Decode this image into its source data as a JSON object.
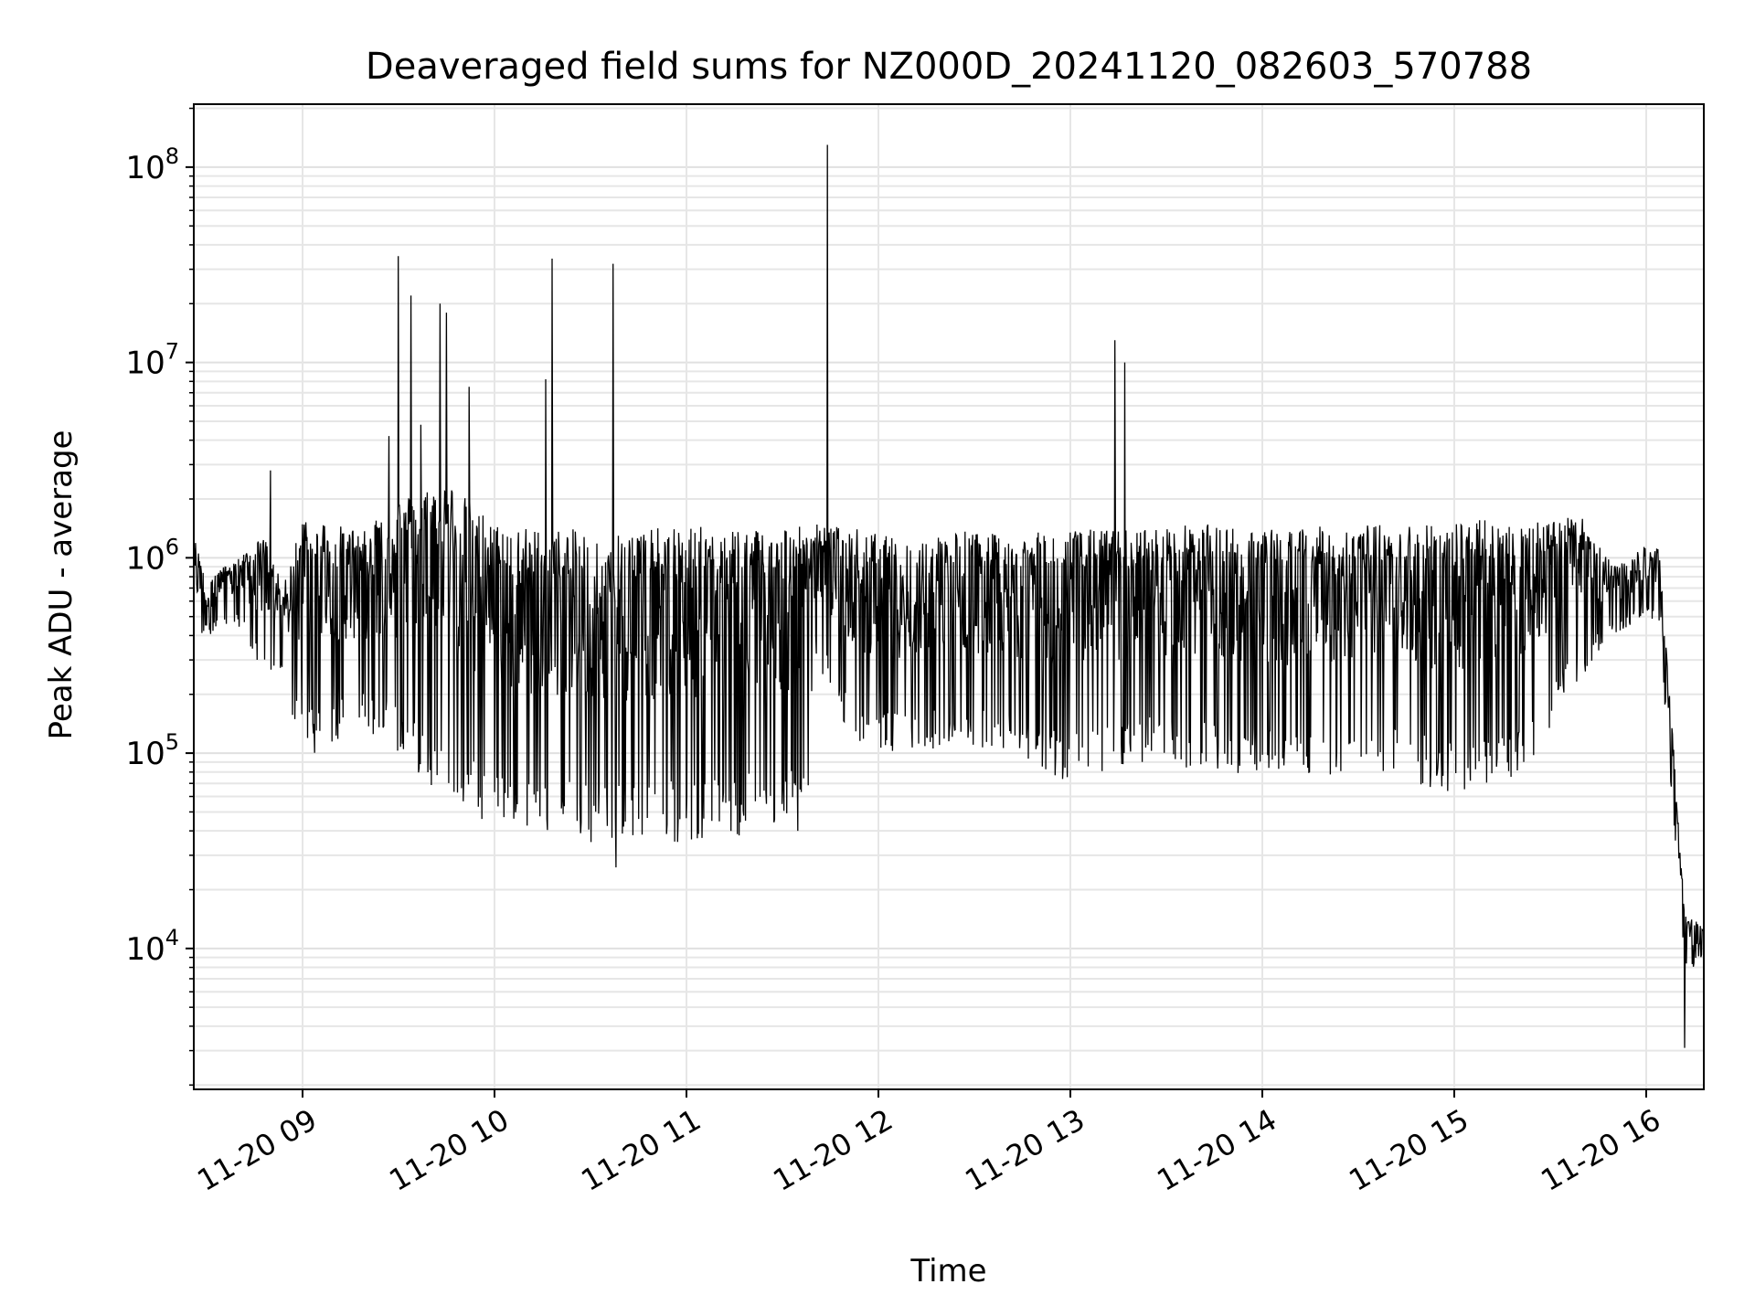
{
  "chart_data": {
    "type": "line",
    "title": "Deaveraged field sums for NZ000D_20241120_082603_570788",
    "xlabel": "Time",
    "ylabel": "Peak ADU - average",
    "yscale": "log",
    "grid": true,
    "grid_minor": true,
    "xlim": [
      "2024-11-20 08:26",
      "2024-11-20 16:18"
    ],
    "ylim": [
      1900,
      210000000
    ],
    "x_ticks": [
      {
        "value": "2024-11-20 09:00",
        "label": "11-20 09"
      },
      {
        "value": "2024-11-20 10:00",
        "label": "11-20 10"
      },
      {
        "value": "2024-11-20 11:00",
        "label": "11-20 11"
      },
      {
        "value": "2024-11-20 12:00",
        "label": "11-20 12"
      },
      {
        "value": "2024-11-20 13:00",
        "label": "11-20 13"
      },
      {
        "value": "2024-11-20 14:00",
        "label": "11-20 14"
      },
      {
        "value": "2024-11-20 15:00",
        "label": "11-20 15"
      },
      {
        "value": "2024-11-20 16:00",
        "label": "11-20 16"
      }
    ],
    "y_ticks": [
      {
        "value": 10000,
        "base": "10",
        "exp": "4"
      },
      {
        "value": 100000,
        "base": "10",
        "exp": "5"
      },
      {
        "value": 1000000,
        "base": "10",
        "exp": "6"
      },
      {
        "value": 10000000,
        "base": "10",
        "exp": "7"
      },
      {
        "value": 100000000,
        "base": "10",
        "exp": "8"
      }
    ],
    "series": [
      {
        "color": "#000000",
        "envelope": [
          {
            "t": "08:26",
            "low": 350000,
            "high": 1300000
          },
          {
            "t": "08:30",
            "low": 400000,
            "high": 800000
          },
          {
            "t": "08:40",
            "low": 450000,
            "high": 1000000
          },
          {
            "t": "08:48",
            "low": 220000,
            "high": 1300000
          },
          {
            "t": "08:54",
            "low": 250000,
            "high": 700000
          },
          {
            "t": "09:00",
            "low": 90000,
            "high": 1700000
          },
          {
            "t": "09:15",
            "low": 130000,
            "high": 1400000
          },
          {
            "t": "09:30",
            "low": 100000,
            "high": 2000000
          },
          {
            "t": "09:45",
            "low": 55000,
            "high": 2500000
          },
          {
            "t": "10:00",
            "low": 40000,
            "high": 1500000
          },
          {
            "t": "10:15",
            "low": 40000,
            "high": 1400000
          },
          {
            "t": "10:30",
            "low": 35000,
            "high": 1400000
          },
          {
            "t": "10:45",
            "low": 35000,
            "high": 1400000
          },
          {
            "t": "11:00",
            "low": 35000,
            "high": 1450000
          },
          {
            "t": "11:20",
            "low": 38000,
            "high": 1450000
          },
          {
            "t": "11:38",
            "low": 40000,
            "high": 1500000
          },
          {
            "t": "11:40",
            "low": 300000,
            "high": 1500000
          },
          {
            "t": "11:55",
            "low": 90000,
            "high": 1400000
          },
          {
            "t": "12:10",
            "low": 100000,
            "high": 1200000
          },
          {
            "t": "12:25",
            "low": 100000,
            "high": 1400000
          },
          {
            "t": "12:40",
            "low": 100000,
            "high": 1300000
          },
          {
            "t": "13:00",
            "low": 70000,
            "high": 1400000
          },
          {
            "t": "13:20",
            "low": 90000,
            "high": 1400000
          },
          {
            "t": "13:40",
            "low": 80000,
            "high": 1500000
          },
          {
            "t": "14:00",
            "low": 75000,
            "high": 1400000
          },
          {
            "t": "14:20",
            "low": 75000,
            "high": 1450000
          },
          {
            "t": "14:40",
            "low": 75000,
            "high": 1500000
          },
          {
            "t": "15:00",
            "low": 60000,
            "high": 1550000
          },
          {
            "t": "15:20",
            "low": 70000,
            "high": 1600000
          },
          {
            "t": "15:40",
            "low": 250000,
            "high": 1600000
          },
          {
            "t": "15:50",
            "low": 400000,
            "high": 900000
          },
          {
            "t": "16:00",
            "low": 500000,
            "high": 1200000
          },
          {
            "t": "16:04",
            "low": 400000,
            "high": 1100000
          },
          {
            "t": "16:08",
            "low": 60000,
            "high": 150000
          },
          {
            "t": "16:12",
            "low": 7500,
            "high": 15000
          },
          {
            "t": "16:15",
            "low": 8000,
            "high": 14000
          },
          {
            "t": "16:18",
            "low": 9000,
            "high": 13000
          }
        ],
        "spikes": [
          {
            "t": "09:30",
            "value": 35000000
          },
          {
            "t": "09:34",
            "value": 22000000
          },
          {
            "t": "09:43",
            "value": 20000000
          },
          {
            "t": "09:45",
            "value": 18000000
          },
          {
            "t": "09:52",
            "value": 7500000
          },
          {
            "t": "09:37",
            "value": 4800000
          },
          {
            "t": "09:27",
            "value": 4200000
          },
          {
            "t": "08:50",
            "value": 2800000
          },
          {
            "t": "10:16",
            "value": 8200000
          },
          {
            "t": "10:18",
            "value": 34000000
          },
          {
            "t": "10:37",
            "value": 32000000
          },
          {
            "t": "11:44",
            "value": 130000000
          },
          {
            "t": "13:14",
            "value": 13000000
          },
          {
            "t": "13:17",
            "value": 10000000
          },
          {
            "t": "10:38",
            "value": 26000
          },
          {
            "t": "16:12",
            "value": 3100
          }
        ]
      }
    ]
  }
}
